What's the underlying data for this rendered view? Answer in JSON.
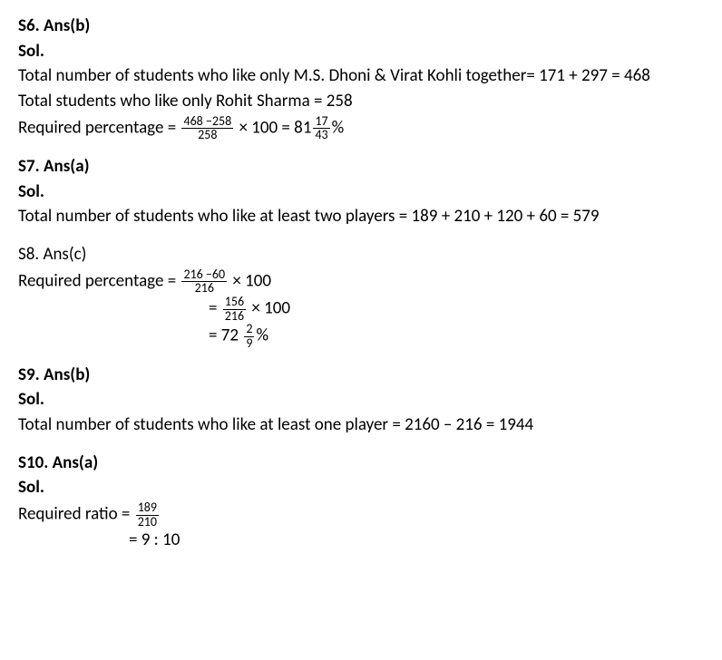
{
  "s6": {
    "heading": "S6. Ans(b)",
    "sol": "Sol.",
    "line1": "Total number of students who like only M.S. Dhoni & Virat Kohli together= 171 + 297 = 468",
    "line2": "Total students who like only Rohit Sharma = 258",
    "req_label": "Required percentage = ",
    "frac1_num": "468 −258",
    "frac1_den": "258",
    "mid_text": " × 100 = 81",
    "frac2_num": "17",
    "frac2_den": "43",
    "tail": "%"
  },
  "s7": {
    "heading": "S7. Ans(a)",
    "sol": "Sol.",
    "line1": "Total number of students who like at least two players = 189 + 210 + 120 + 60 = 579"
  },
  "s8": {
    "heading": "S8. Ans(c)",
    "req_label": "Required percentage = ",
    "f1_num": "216 −60",
    "f1_den": "216",
    "f1_tail": " × 100",
    "eq2_pre": "= ",
    "f2_num": "156",
    "f2_den": "216",
    "f2_tail": " × 100",
    "eq3_pre": "= 72 ",
    "f3_num": "2",
    "f3_den": "9",
    "f3_tail": "%"
  },
  "s9": {
    "heading": "S9. Ans(b)",
    "sol": "Sol.",
    "line1": "Total number of students who like at least one player = 2160 – 216 = 1944"
  },
  "s10": {
    "heading": "S10. Ans(a)",
    "sol": "Sol.",
    "req_label": "Required ratio = ",
    "f_num": "189",
    "f_den": "210",
    "line2": "= 9 : 10"
  }
}
